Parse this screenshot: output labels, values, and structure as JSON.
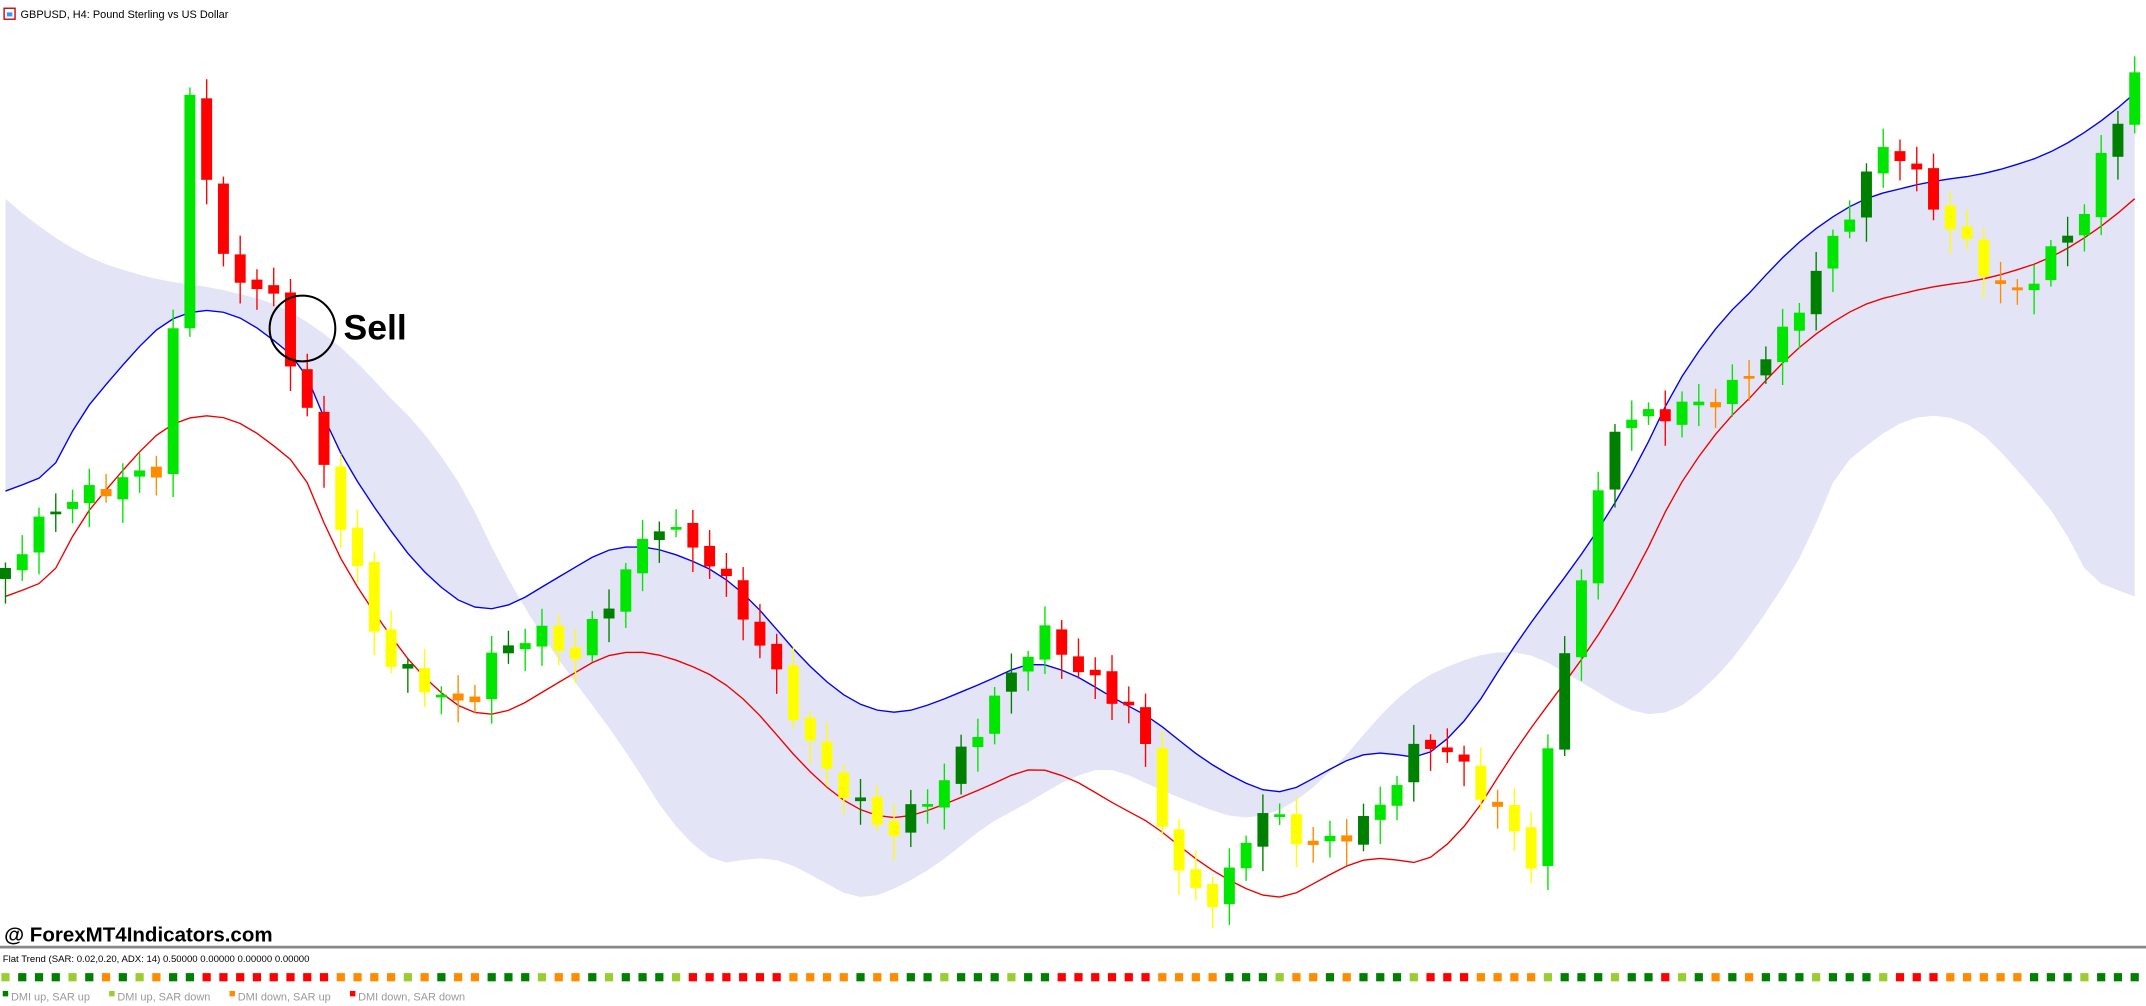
{
  "header": {
    "title": "GBPUSD, H4: Pound Sterling vs US Dollar"
  },
  "annotation": "Sell",
  "watermark": "@ ForexMT4Indicators.com",
  "indicator": {
    "label": "Flat Trend (SAR: 0.02,0.20, ADX: 14) 0.50000 0.00000 0.00000 0.00000",
    "legend": [
      {
        "name": "DMI up, SAR up",
        "color": "#008000"
      },
      {
        "name": "DMI up, SAR down",
        "color": "#9acd32"
      },
      {
        "name": "DMI down, SAR up",
        "color": "#ff8c00"
      },
      {
        "name": "DMI down, SAR down",
        "color": "#ff0000"
      }
    ]
  }
}
